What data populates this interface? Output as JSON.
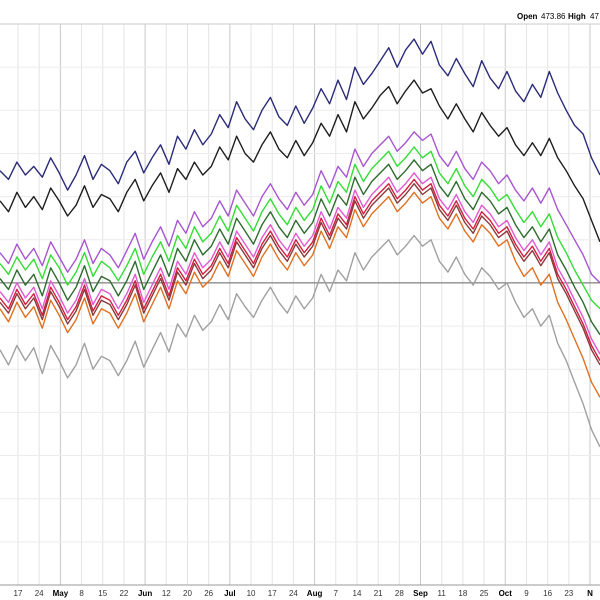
{
  "header": {
    "open_label": "Open",
    "open_value": "473.86",
    "high_label": "High",
    "high_value": "47"
  },
  "chart_data": {
    "type": "line",
    "title": "",
    "xlabel": "",
    "ylabel": "",
    "grid": true,
    "ylim": [
      -14,
      12
    ],
    "baseline": 0,
    "x_ticks": [
      {
        "label": "17",
        "bold": false
      },
      {
        "label": "24",
        "bold": false
      },
      {
        "label": "May",
        "bold": true
      },
      {
        "label": "8",
        "bold": false
      },
      {
        "label": "15",
        "bold": false
      },
      {
        "label": "22",
        "bold": false
      },
      {
        "label": "Jun",
        "bold": true
      },
      {
        "label": "12",
        "bold": false
      },
      {
        "label": "20",
        "bold": false
      },
      {
        "label": "26",
        "bold": false
      },
      {
        "label": "Jul",
        "bold": true
      },
      {
        "label": "10",
        "bold": false
      },
      {
        "label": "17",
        "bold": false
      },
      {
        "label": "24",
        "bold": false
      },
      {
        "label": "Aug",
        "bold": true
      },
      {
        "label": "7",
        "bold": false
      },
      {
        "label": "14",
        "bold": false
      },
      {
        "label": "21",
        "bold": false
      },
      {
        "label": "28",
        "bold": false
      },
      {
        "label": "Sep",
        "bold": true
      },
      {
        "label": "11",
        "bold": false
      },
      {
        "label": "18",
        "bold": false
      },
      {
        "label": "25",
        "bold": false
      },
      {
        "label": "Oct",
        "bold": true
      },
      {
        "label": "9",
        "bold": false
      },
      {
        "label": "16",
        "bold": false
      },
      {
        "label": "23",
        "bold": false
      },
      {
        "label": "N",
        "bold": true
      }
    ],
    "series": [
      {
        "color": "#2b2b7a",
        "values": [
          5.2,
          4.8,
          5.6,
          5.0,
          5.4,
          4.9,
          5.8,
          5.1,
          4.3,
          5.0,
          5.9,
          4.8,
          5.5,
          5.2,
          4.6,
          5.6,
          6.1,
          5.1,
          5.8,
          6.4,
          5.5,
          6.8,
          6.2,
          7.1,
          6.4,
          6.9,
          7.8,
          7.2,
          8.4,
          7.6,
          7.1,
          8.0,
          8.6,
          7.7,
          7.3,
          8.2,
          7.4,
          8.1,
          9.0,
          8.3,
          9.4,
          8.5,
          10.0,
          9.2,
          9.7,
          10.3,
          10.9,
          10.0,
          10.8,
          11.3,
          10.6,
          11.2,
          10.1,
          9.6,
          10.4,
          9.7,
          9.1,
          10.3,
          9.5,
          9.0,
          9.8,
          8.9,
          8.4,
          9.2,
          8.6,
          9.8,
          8.8,
          8.0,
          7.3,
          6.9,
          5.8,
          5.0
        ],
        "note": "navy top line"
      },
      {
        "color": "#1e1e1e",
        "values": [
          3.8,
          3.3,
          4.2,
          3.5,
          4.0,
          3.4,
          4.4,
          3.8,
          3.1,
          3.6,
          4.5,
          3.5,
          4.1,
          3.9,
          3.3,
          4.2,
          4.8,
          3.8,
          4.5,
          5.1,
          4.2,
          5.3,
          4.8,
          5.6,
          5.0,
          5.4,
          6.3,
          5.7,
          6.8,
          6.0,
          5.6,
          6.4,
          7.0,
          6.2,
          5.8,
          6.6,
          5.9,
          6.5,
          7.4,
          6.8,
          7.8,
          7.0,
          8.4,
          7.6,
          8.1,
          8.7,
          9.1,
          8.3,
          8.9,
          9.4,
          8.8,
          9.0,
          8.2,
          7.6,
          8.3,
          7.6,
          7.0,
          7.9,
          7.3,
          6.8,
          7.2,
          6.4,
          5.9,
          6.5,
          5.9,
          6.7,
          5.8,
          5.2,
          4.5,
          3.9,
          2.9,
          1.9
        ]
      },
      {
        "color": "#a855d0",
        "values": [
          1.4,
          0.9,
          1.8,
          1.1,
          1.6,
          0.8,
          1.9,
          1.2,
          0.5,
          1.1,
          2.0,
          0.9,
          1.6,
          1.3,
          0.7,
          1.5,
          2.3,
          1.1,
          1.9,
          2.6,
          1.7,
          2.9,
          2.3,
          3.3,
          2.6,
          3.0,
          3.8,
          3.1,
          4.3,
          3.7,
          3.1,
          4.0,
          4.6,
          3.9,
          3.4,
          4.2,
          3.6,
          4.1,
          5.2,
          4.4,
          5.4,
          4.9,
          6.2,
          5.4,
          6.0,
          6.4,
          6.8,
          6.1,
          6.5,
          7.0,
          6.6,
          6.9,
          5.9,
          5.4,
          6.1,
          5.3,
          4.8,
          5.6,
          5.2,
          4.6,
          5.0,
          4.3,
          3.8,
          4.4,
          3.7,
          4.4,
          3.4,
          2.7,
          2.0,
          1.3,
          0.4,
          0.0
        ]
      },
      {
        "color": "#33dd33",
        "values": [
          0.9,
          0.4,
          1.2,
          0.6,
          1.1,
          0.2,
          1.3,
          0.7,
          -0.1,
          0.5,
          1.4,
          0.3,
          1.0,
          0.7,
          0.1,
          0.8,
          1.6,
          0.4,
          1.2,
          1.9,
          1.0,
          2.2,
          1.6,
          2.6,
          1.9,
          2.3,
          3.1,
          2.4,
          3.6,
          3.0,
          2.4,
          3.3,
          3.9,
          3.2,
          2.7,
          3.5,
          2.9,
          3.4,
          4.5,
          3.7,
          4.7,
          4.2,
          5.5,
          4.7,
          5.3,
          5.7,
          6.1,
          5.4,
          5.8,
          6.3,
          5.8,
          6.1,
          5.1,
          4.6,
          5.3,
          4.5,
          4.0,
          4.8,
          4.4,
          3.8,
          4.1,
          3.4,
          2.8,
          3.3,
          2.6,
          3.2,
          2.1,
          1.4,
          0.6,
          -0.1,
          -0.8,
          -1.2
        ]
      },
      {
        "color": "#2e6b2e",
        "values": [
          0.2,
          -0.3,
          0.6,
          -0.1,
          0.4,
          -0.6,
          0.7,
          0.0,
          -0.8,
          -0.2,
          0.8,
          -0.4,
          0.3,
          0.1,
          -0.6,
          0.1,
          1.0,
          -0.3,
          0.5,
          1.3,
          0.3,
          1.6,
          1.0,
          2.0,
          1.3,
          1.7,
          2.5,
          1.8,
          3.0,
          2.4,
          1.8,
          2.7,
          3.3,
          2.6,
          2.1,
          2.9,
          2.3,
          2.8,
          3.9,
          3.1,
          4.1,
          3.6,
          4.9,
          4.1,
          4.7,
          5.1,
          5.5,
          4.8,
          5.2,
          5.7,
          5.2,
          5.5,
          4.5,
          4.0,
          4.7,
          3.9,
          3.4,
          4.2,
          3.8,
          3.2,
          3.5,
          2.7,
          2.1,
          2.6,
          1.9,
          2.5,
          1.3,
          0.6,
          -0.2,
          -0.9,
          -1.8,
          -2.4
        ]
      },
      {
        "color": "#e05ad0",
        "values": [
          -0.4,
          -0.9,
          0.0,
          -0.7,
          -0.2,
          -1.2,
          0.1,
          -0.6,
          -1.4,
          -0.8,
          0.2,
          -1.0,
          -0.3,
          -0.5,
          -1.2,
          -0.5,
          0.4,
          -0.9,
          -0.1,
          0.7,
          -0.3,
          1.0,
          0.4,
          1.4,
          0.7,
          1.1,
          1.9,
          1.2,
          2.4,
          1.8,
          1.2,
          2.1,
          2.7,
          2.0,
          1.5,
          2.3,
          1.7,
          2.2,
          3.3,
          2.5,
          3.5,
          3.0,
          4.3,
          3.5,
          4.1,
          4.5,
          4.9,
          4.2,
          4.6,
          5.1,
          4.6,
          4.9,
          3.9,
          3.4,
          4.1,
          3.3,
          2.8,
          3.6,
          3.2,
          2.6,
          2.9,
          2.1,
          1.5,
          2.0,
          1.3,
          1.9,
          0.7,
          0.0,
          -0.8,
          -1.6,
          -2.6,
          -3.3
        ]
      },
      {
        "color": "#d02040",
        "values": [
          -0.7,
          -1.2,
          -0.3,
          -1.0,
          -0.5,
          -1.5,
          -0.2,
          -0.9,
          -1.7,
          -1.1,
          -0.1,
          -1.3,
          -0.6,
          -0.8,
          -1.5,
          -0.8,
          0.1,
          -1.2,
          -0.4,
          0.4,
          -0.6,
          0.7,
          0.1,
          1.1,
          0.4,
          0.8,
          1.6,
          0.9,
          2.1,
          1.5,
          0.9,
          1.8,
          2.4,
          1.7,
          1.2,
          2.0,
          1.4,
          1.9,
          3.0,
          2.2,
          3.2,
          2.7,
          4.0,
          3.2,
          3.8,
          4.2,
          4.6,
          3.9,
          4.3,
          4.8,
          4.3,
          4.6,
          3.6,
          3.1,
          3.8,
          3.0,
          2.5,
          3.3,
          2.9,
          2.3,
          2.6,
          1.8,
          1.2,
          1.7,
          1.0,
          1.6,
          0.4,
          -0.3,
          -1.1,
          -1.9,
          -2.9,
          -3.6
        ]
      },
      {
        "color": "#8b3a3a",
        "values": [
          -0.9,
          -1.4,
          -0.5,
          -1.2,
          -0.7,
          -1.7,
          -0.4,
          -1.1,
          -1.9,
          -1.3,
          -0.3,
          -1.5,
          -0.8,
          -1.0,
          -1.7,
          -1.0,
          -0.1,
          -1.4,
          -0.6,
          0.2,
          -0.8,
          0.5,
          -0.1,
          0.9,
          0.2,
          0.6,
          1.4,
          0.7,
          1.9,
          1.3,
          0.7,
          1.6,
          2.2,
          1.5,
          1.0,
          1.8,
          1.2,
          1.7,
          2.8,
          2.0,
          3.0,
          2.5,
          3.8,
          3.0,
          3.6,
          4.0,
          4.4,
          3.7,
          4.1,
          4.6,
          4.1,
          4.4,
          3.4,
          2.9,
          3.6,
          2.8,
          2.3,
          3.1,
          2.7,
          2.1,
          2.4,
          1.6,
          1.0,
          1.5,
          0.8,
          1.4,
          0.2,
          -0.5,
          -1.3,
          -2.1,
          -3.1,
          -3.8
        ]
      },
      {
        "color": "#e07020",
        "values": [
          -1.2,
          -1.8,
          -0.9,
          -1.6,
          -1.1,
          -2.1,
          -0.8,
          -1.5,
          -2.3,
          -1.7,
          -0.7,
          -1.9,
          -1.2,
          -1.4,
          -2.1,
          -1.4,
          -0.5,
          -1.8,
          -1.0,
          -0.2,
          -1.2,
          0.1,
          -0.5,
          0.5,
          -0.2,
          0.2,
          1.0,
          0.3,
          1.5,
          0.9,
          0.3,
          1.2,
          1.8,
          1.1,
          0.6,
          1.4,
          0.8,
          1.3,
          2.4,
          1.6,
          2.6,
          2.1,
          3.4,
          2.6,
          3.2,
          3.6,
          4.0,
          3.3,
          3.7,
          4.2,
          3.7,
          4.0,
          3.0,
          2.5,
          3.2,
          2.4,
          1.9,
          2.7,
          2.3,
          1.7,
          2.0,
          1.0,
          0.3,
          0.7,
          -0.1,
          0.4,
          -0.9,
          -1.7,
          -2.6,
          -3.5,
          -4.6,
          -5.3
        ]
      },
      {
        "color": "#a0a0a0",
        "values": [
          -3.1,
          -3.8,
          -2.9,
          -3.6,
          -3.0,
          -4.2,
          -2.9,
          -3.6,
          -4.4,
          -3.8,
          -2.8,
          -4.0,
          -3.4,
          -3.6,
          -4.3,
          -3.6,
          -2.7,
          -3.9,
          -3.1,
          -2.3,
          -3.2,
          -1.9,
          -2.5,
          -1.5,
          -2.2,
          -1.8,
          -1.0,
          -1.7,
          -0.5,
          -1.1,
          -1.6,
          -0.8,
          -0.2,
          -0.9,
          -1.4,
          -0.6,
          -1.2,
          -0.7,
          0.4,
          -0.4,
          0.6,
          0.1,
          1.4,
          0.6,
          1.2,
          1.6,
          2.0,
          1.3,
          1.7,
          2.2,
          1.7,
          2.0,
          1.0,
          0.5,
          1.2,
          0.4,
          -0.1,
          0.7,
          0.3,
          -0.3,
          0.0,
          -0.9,
          -1.6,
          -1.2,
          -2.0,
          -1.5,
          -2.8,
          -3.6,
          -4.6,
          -5.6,
          -6.8,
          -7.6
        ]
      }
    ]
  }
}
